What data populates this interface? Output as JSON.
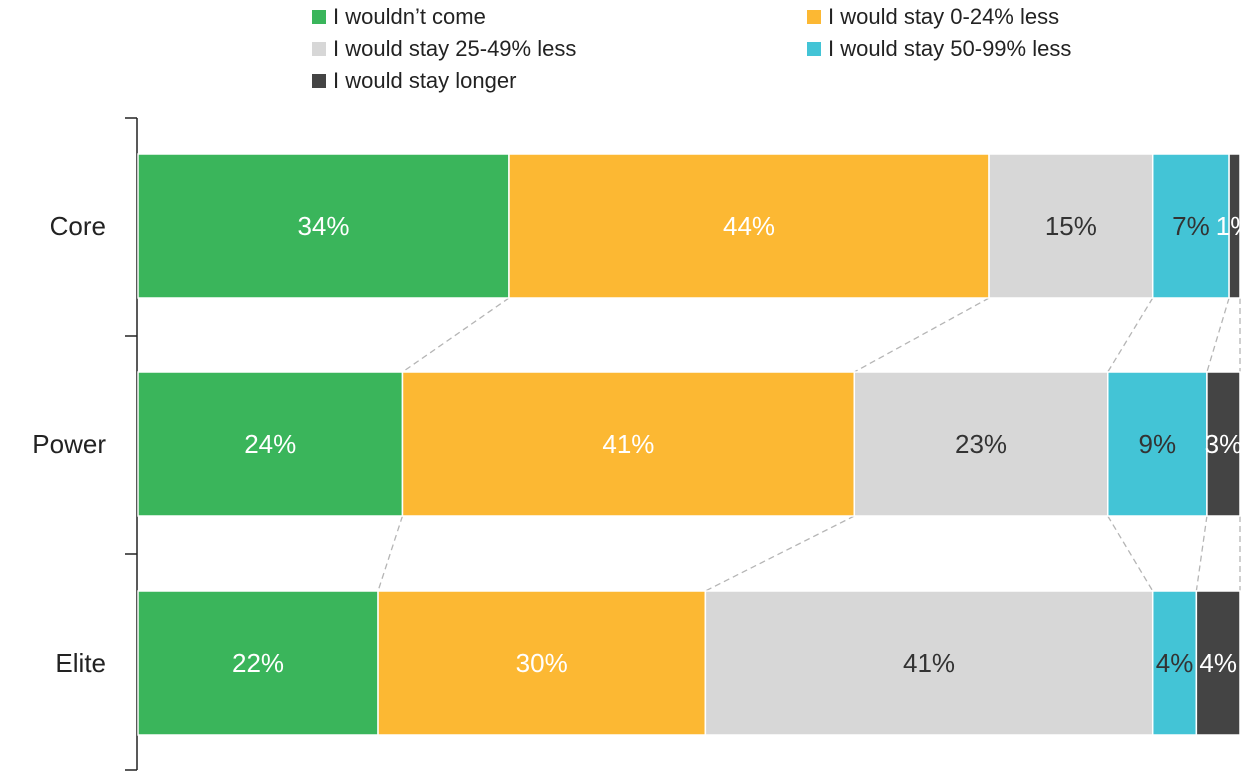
{
  "chart_data": {
    "type": "bar",
    "orientation": "horizontal",
    "stacked": true,
    "categories": [
      "Core",
      "Power",
      "Elite"
    ],
    "series": [
      {
        "name": "I wouldn’t come",
        "color": "#3ab55b",
        "values": [
          34,
          24,
          22
        ],
        "labels": [
          "34%",
          "24%",
          "22%"
        ]
      },
      {
        "name": "I would stay 0-24% less",
        "color": "#fcb833",
        "values": [
          44,
          41,
          30
        ],
        "labels": [
          "44%",
          "41%",
          "30%"
        ]
      },
      {
        "name": "I would stay 25-49% less",
        "color": "#d7d7d7",
        "values": [
          15,
          23,
          41
        ],
        "labels": [
          "15%",
          "23%",
          "41%"
        ]
      },
      {
        "name": "I would stay 50-99% less",
        "color": "#43c4d6",
        "values": [
          7,
          9,
          4
        ],
        "labels": [
          "7%",
          "9%",
          "4%"
        ]
      },
      {
        "name": "I would stay longer",
        "color": "#444444",
        "values": [
          1,
          3,
          4
        ],
        "labels": [
          "1%",
          "3%",
          "4%"
        ]
      }
    ],
    "label_colors": [
      "#ffffff",
      "#ffffff",
      "#333333",
      "#333333",
      "#ffffff"
    ],
    "connectors": "dashed",
    "legend_position": "top",
    "grid": false
  }
}
